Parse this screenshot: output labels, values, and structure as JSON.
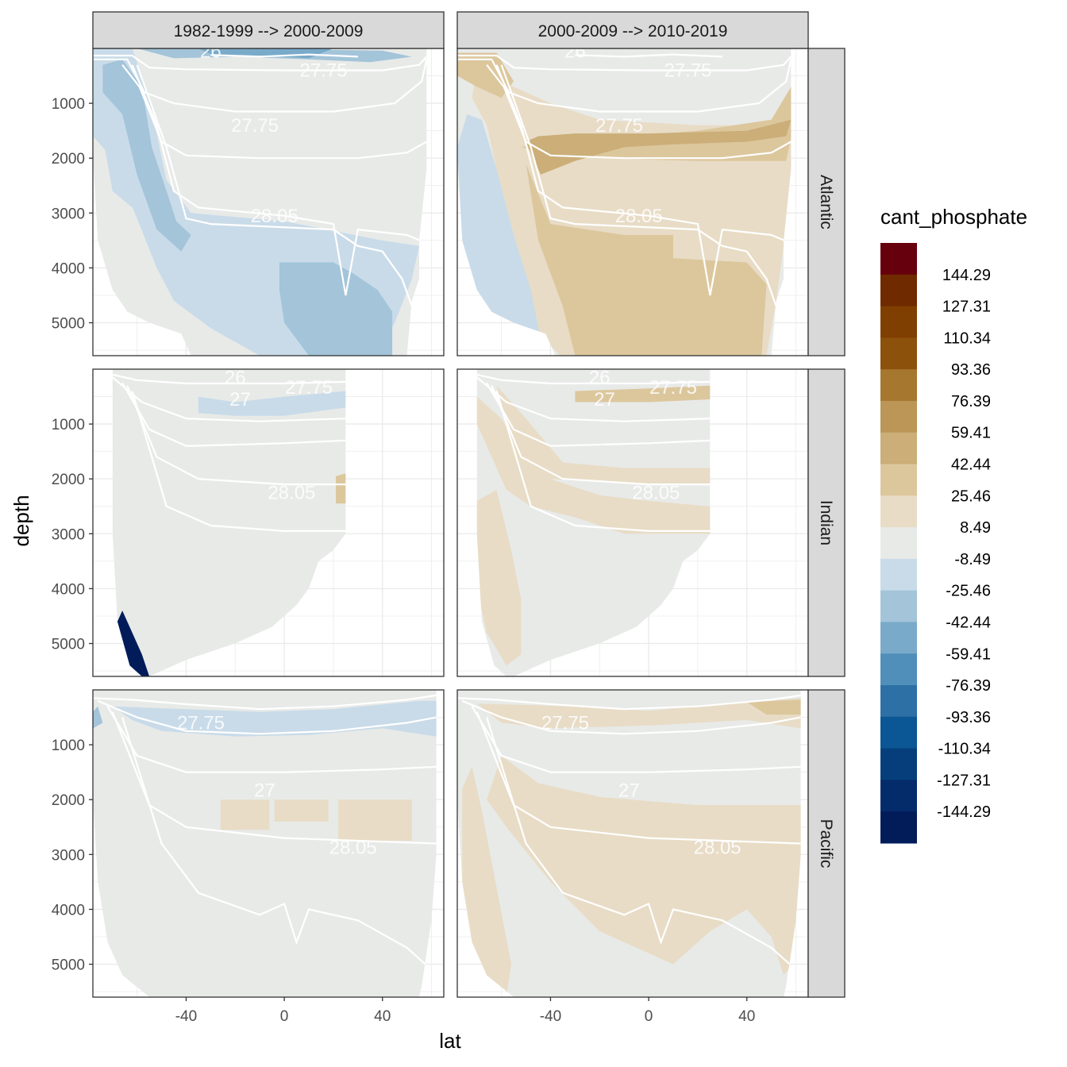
{
  "chart_data": {
    "type": "heatmap",
    "variable": "cant_phosphate",
    "xlabel": "lat",
    "ylabel": "depth",
    "x_ticks": [
      -40,
      0,
      40
    ],
    "x_tick_labels": [
      "-40",
      "0",
      "40"
    ],
    "xlim": [
      -78,
      65
    ],
    "y_ticks": [
      1000,
      2000,
      3000,
      4000,
      5000
    ],
    "y_tick_labels": [
      "1000",
      "2000",
      "3000",
      "4000",
      "5000"
    ],
    "ylim": [
      5600,
      0
    ],
    "columns": [
      "1982-1999 --> 2000-2009",
      "2000-2009 --> 2010-2019"
    ],
    "rows": [
      "Atlantic",
      "Indian",
      "Pacific"
    ],
    "isopycnal_labels": [
      "26",
      "27",
      "27.75",
      "28.05"
    ],
    "legend": {
      "title": "cant_phosphate",
      "labels": [
        "144.29",
        "127.31",
        "110.34",
        "93.36",
        "76.39",
        "59.41",
        "42.44",
        "25.46",
        "8.49",
        "-8.49",
        "-25.46",
        "-42.44",
        "-59.41",
        "-76.39",
        "-93.36",
        "-110.34",
        "-127.31",
        "-144.29"
      ],
      "colors": [
        "#67000d",
        "#6f2a00",
        "#7f3f00",
        "#8c510a",
        "#a6772e",
        "#bb9657",
        "#cbae78",
        "#dcc79d",
        "#e8dcc6",
        "#e8eae8",
        "#c9dbe9",
        "#a3c4d9",
        "#79aac9",
        "#4f8fb9",
        "#2c70a5",
        "#0b5694",
        "#063e7c",
        "#042b6a",
        "#021c5a"
      ]
    },
    "panels": [
      {
        "row": "Atlantic",
        "column": "1982-1999 --> 2000-2009",
        "dominant_range": "-25.46 to -8.49",
        "max_negative_range": "-42.44 to -25.46"
      },
      {
        "row": "Atlantic",
        "column": "2000-2009 --> 2010-2019",
        "dominant_range": "8.49 to 25.46",
        "max_positive_range": "42.44 to 59.41"
      },
      {
        "row": "Indian",
        "column": "1982-1999 --> 2000-2009",
        "dominant_range": "-8.49 to 8.49",
        "max_negative_range": "-144.29 to -127.31"
      },
      {
        "row": "Indian",
        "column": "2000-2009 --> 2010-2019",
        "dominant_range": "8.49 to 25.46",
        "max_positive_range": "25.46 to 42.44"
      },
      {
        "row": "Pacific",
        "column": "1982-1999 --> 2000-2009",
        "dominant_range": "-8.49 to 8.49",
        "max_negative_range": "-25.46 to -8.49"
      },
      {
        "row": "Pacific",
        "column": "2000-2009 --> 2010-2019",
        "dominant_range": "8.49 to 25.46",
        "max_positive_range": "25.46 to 42.44"
      }
    ]
  }
}
